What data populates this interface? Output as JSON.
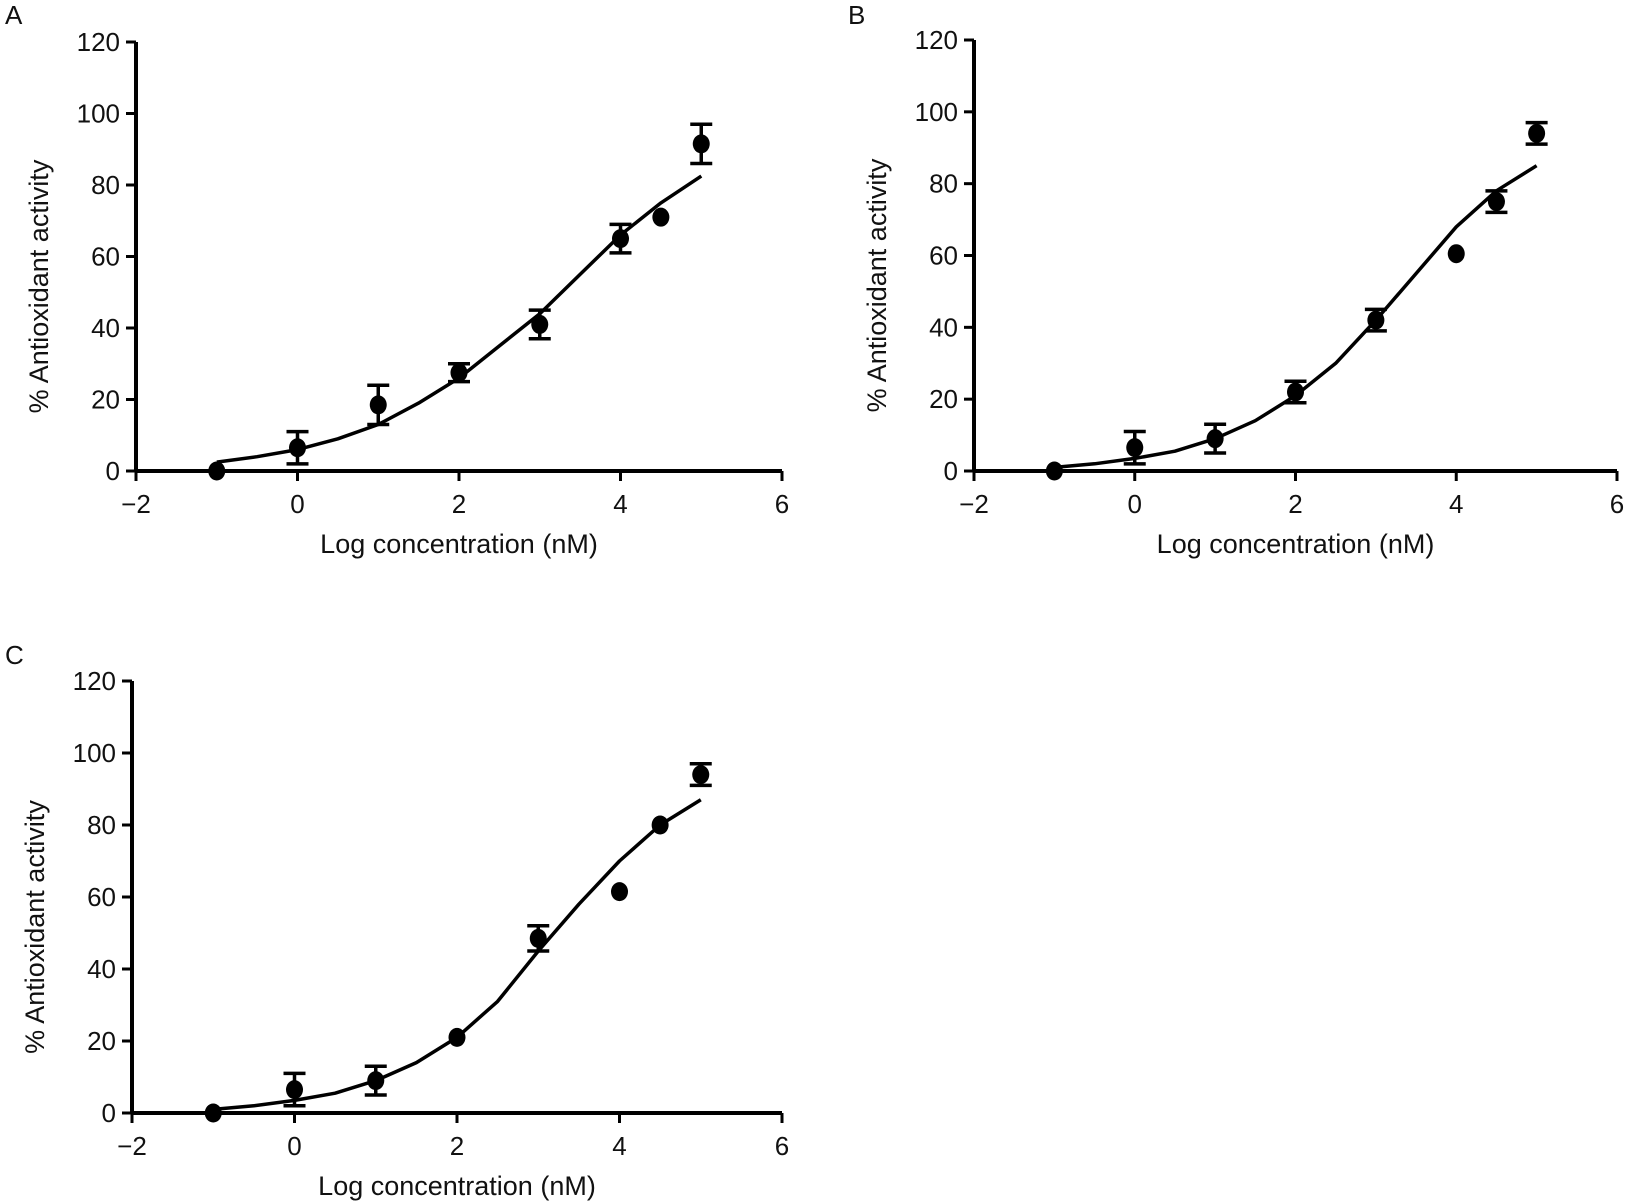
{
  "chart_data": [
    {
      "panel": "A",
      "type": "scatter",
      "xlabel": "Log concentration (nM)",
      "ylabel": "% Antioxidant activity",
      "xlim": [
        -2,
        6
      ],
      "ylim": [
        0,
        120
      ],
      "xticks": [
        -2,
        0,
        2,
        4,
        6
      ],
      "yticks": [
        0,
        20,
        40,
        60,
        80,
        100,
        120
      ],
      "grid": false,
      "points": [
        {
          "x": -1,
          "y": 0,
          "err": null
        },
        {
          "x": 0,
          "y": 6.5,
          "err": 4.5
        },
        {
          "x": 1,
          "y": 18.5,
          "err": 5.5
        },
        {
          "x": 2,
          "y": 27.5,
          "err": 2.5
        },
        {
          "x": 3,
          "y": 41,
          "err": 4
        },
        {
          "x": 4,
          "y": 65,
          "err": 4
        },
        {
          "x": 4.5,
          "y": 71,
          "err": null
        },
        {
          "x": 5,
          "y": 91.5,
          "err": 5.5
        }
      ],
      "fit_curve": {
        "x": [
          -1,
          -0.5,
          0,
          0.5,
          1,
          1.5,
          2,
          2.5,
          3,
          3.5,
          4,
          4.5,
          5
        ],
        "y": [
          2.5,
          4,
          6,
          9,
          13,
          19,
          26,
          35,
          44,
          55,
          66,
          75,
          82.5
        ]
      }
    },
    {
      "panel": "B",
      "type": "scatter",
      "xlabel": "Log concentration (nM)",
      "ylabel": "% Antioxidant activity",
      "xlim": [
        -2,
        6
      ],
      "ylim": [
        0,
        120
      ],
      "xticks": [
        -2,
        0,
        2,
        4,
        6
      ],
      "yticks": [
        0,
        20,
        40,
        60,
        80,
        100,
        120
      ],
      "grid": false,
      "points": [
        {
          "x": -1,
          "y": 0,
          "err": null
        },
        {
          "x": 0,
          "y": 6.5,
          "err": 4.5
        },
        {
          "x": 1,
          "y": 9,
          "err": 4
        },
        {
          "x": 2,
          "y": 22,
          "err": 3
        },
        {
          "x": 3,
          "y": 42,
          "err": 3
        },
        {
          "x": 4,
          "y": 60.5,
          "err": null
        },
        {
          "x": 4.5,
          "y": 75,
          "err": 3
        },
        {
          "x": 5,
          "y": 94,
          "err": 3
        }
      ],
      "fit_curve": {
        "x": [
          -1,
          -0.5,
          0,
          0.5,
          1,
          1.5,
          2,
          2.5,
          3,
          3.5,
          4,
          4.5,
          5
        ],
        "y": [
          1,
          2,
          3.5,
          5.5,
          9,
          14,
          21,
          30,
          42,
          55,
          68,
          78,
          85
        ]
      }
    },
    {
      "panel": "C",
      "type": "scatter",
      "xlabel": "Log concentration (nM)",
      "ylabel": "% Antioxidant activity",
      "xlim": [
        -2,
        6
      ],
      "ylim": [
        0,
        120
      ],
      "xticks": [
        -2,
        0,
        2,
        4,
        6
      ],
      "yticks": [
        0,
        20,
        40,
        60,
        80,
        100,
        120
      ],
      "grid": false,
      "points": [
        {
          "x": -1,
          "y": 0,
          "err": null
        },
        {
          "x": 0,
          "y": 6.5,
          "err": 4.5
        },
        {
          "x": 1,
          "y": 9,
          "err": 4
        },
        {
          "x": 2,
          "y": 21,
          "err": null
        },
        {
          "x": 3,
          "y": 48.5,
          "err": 3.5
        },
        {
          "x": 4,
          "y": 61.5,
          "err": null
        },
        {
          "x": 4.5,
          "y": 80,
          "err": null
        },
        {
          "x": 5,
          "y": 94,
          "err": 3
        }
      ],
      "fit_curve": {
        "x": [
          -1,
          -0.5,
          0,
          0.5,
          1,
          1.5,
          2,
          2.5,
          3,
          3.5,
          4,
          4.5,
          5
        ],
        "y": [
          1,
          2,
          3.5,
          5.5,
          9,
          14,
          21,
          31,
          45,
          58,
          70,
          80,
          87
        ]
      }
    }
  ]
}
